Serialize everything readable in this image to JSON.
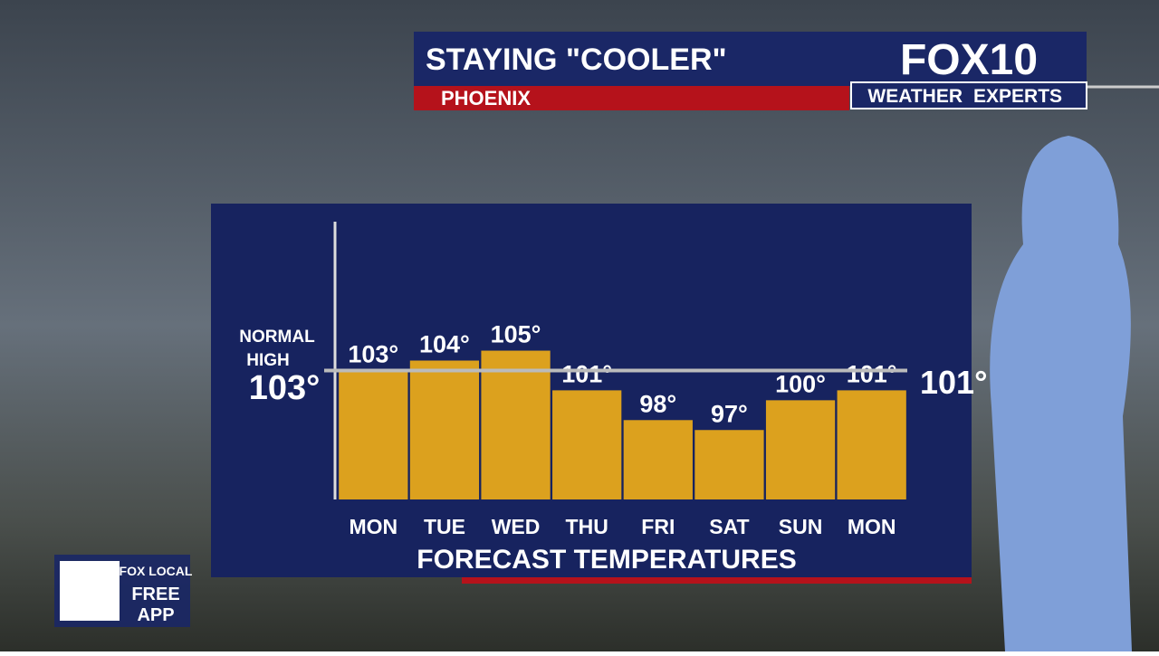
{
  "header": {
    "title": "STAYING \"COOLER\"",
    "location": "PHOENIX"
  },
  "logo": {
    "name": "FOX10",
    "tagline": [
      "WEATHER",
      "EXPERTS"
    ]
  },
  "app_promo": {
    "brand": "FOX LOCAL",
    "text": [
      "FREE",
      "APP"
    ]
  },
  "chart_data": {
    "type": "bar",
    "title": "FORECAST TEMPERATURES",
    "categories": [
      "MON",
      "TUE",
      "WED",
      "THU",
      "FRI",
      "SAT",
      "SUN",
      "MON"
    ],
    "values": [
      103,
      104,
      105,
      101,
      98,
      97,
      100,
      101
    ],
    "value_labels": [
      "103°",
      "104°",
      "105°",
      "101°",
      "98°",
      "97°",
      "100°",
      "101°"
    ],
    "color": "#dca11e",
    "ylim": [
      90,
      118
    ],
    "reference_line": {
      "label": [
        "NORMAL",
        "HIGH"
      ],
      "value": 103,
      "value_label": "103°"
    },
    "side_label": "101°"
  }
}
